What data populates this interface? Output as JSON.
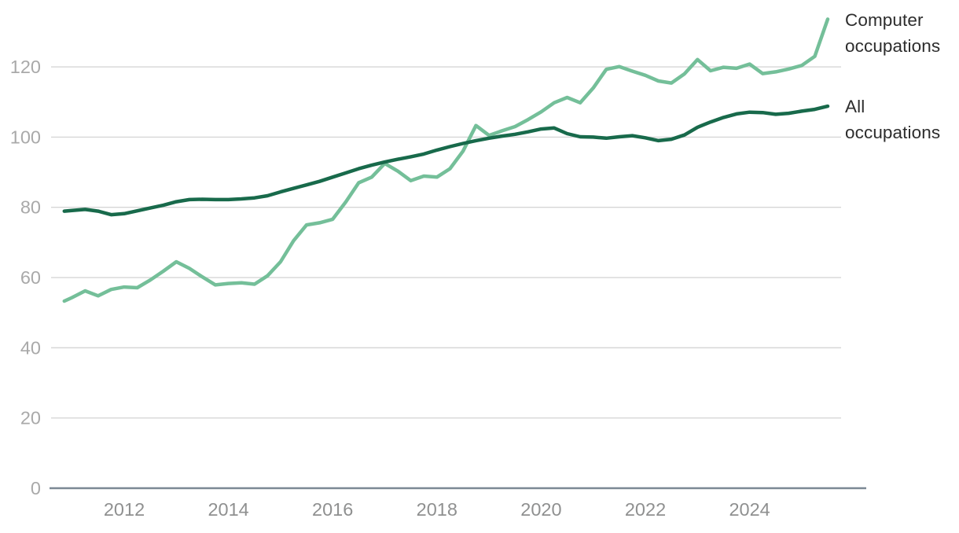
{
  "legend": {
    "series1_label": "Computer occupations",
    "series2_label": "All occupations",
    "text_color": "#2d2d2d"
  },
  "axes": {
    "x_tick_labels": [
      "2012",
      "2014",
      "2016",
      "2018",
      "2020",
      "2022",
      "2024"
    ],
    "y_tick_labels": [
      "0",
      "20",
      "40",
      "60",
      "80",
      "100",
      "120"
    ],
    "x_tick_color": "#8f9090",
    "y_tick_color": "#a9a9a9",
    "grid_color": "#d6d6d6",
    "baseline_color": "#7c8894"
  },
  "chart_data": {
    "type": "line",
    "title": "",
    "xlabel": "",
    "ylabel": "",
    "xlim": [
      2010.7,
      2025.75
    ],
    "ylim": [
      0,
      135
    ],
    "grid": true,
    "legend_position": "right-inline",
    "x_ticks": [
      2012,
      2014,
      2016,
      2018,
      2020,
      2022,
      2024
    ],
    "y_ticks": [
      0,
      20,
      40,
      60,
      80,
      100,
      120
    ],
    "x": [
      2010.85,
      2011.0,
      2011.25,
      2011.5,
      2011.75,
      2012.0,
      2012.25,
      2012.5,
      2012.75,
      2013.0,
      2013.25,
      2013.5,
      2013.75,
      2014.0,
      2014.25,
      2014.5,
      2014.75,
      2015.0,
      2015.25,
      2015.5,
      2015.75,
      2016.0,
      2016.25,
      2016.5,
      2016.75,
      2017.0,
      2017.25,
      2017.5,
      2017.75,
      2018.0,
      2018.25,
      2018.5,
      2018.75,
      2019.0,
      2019.25,
      2019.5,
      2019.75,
      2020.0,
      2020.25,
      2020.5,
      2020.75,
      2021.0,
      2021.25,
      2021.5,
      2021.75,
      2022.0,
      2022.25,
      2022.5,
      2022.75,
      2023.0,
      2023.25,
      2023.5,
      2023.75,
      2024.0,
      2024.25,
      2024.5,
      2024.75,
      2025.0,
      2025.25,
      2025.5
    ],
    "series": [
      {
        "name": "Computer occupations",
        "color": "#74bf99",
        "values": [
          53.3,
          54.3,
          56.2,
          54.8,
          56.6,
          57.3,
          57.1,
          59.3,
          61.8,
          64.5,
          62.6,
          60.2,
          57.9,
          58.3,
          58.5,
          58.1,
          60.5,
          64.5,
          70.5,
          75.0,
          75.6,
          76.6,
          81.5,
          87.0,
          88.6,
          92.5,
          90.3,
          87.6,
          88.9,
          88.6,
          91.0,
          96.0,
          103.3,
          100.5,
          101.8,
          103.0,
          105.0,
          107.2,
          109.8,
          111.3,
          109.8,
          114.0,
          119.3,
          120.1,
          118.8,
          117.6,
          116.0,
          115.4,
          118.0,
          122.1,
          118.9,
          119.9,
          119.6,
          120.8,
          118.1,
          118.6,
          119.4,
          120.4,
          123.0,
          133.6
        ]
      },
      {
        "name": "All occupations",
        "color": "#186a4b",
        "values": [
          78.9,
          79.1,
          79.4,
          78.9,
          77.9,
          78.2,
          79.0,
          79.8,
          80.6,
          81.6,
          82.2,
          82.3,
          82.2,
          82.2,
          82.4,
          82.7,
          83.3,
          84.4,
          85.4,
          86.4,
          87.4,
          88.6,
          89.8,
          91.0,
          92.0,
          92.9,
          93.7,
          94.4,
          95.2,
          96.3,
          97.3,
          98.2,
          99.0,
          99.7,
          100.3,
          100.8,
          101.5,
          102.3,
          102.6,
          101.0,
          100.1,
          100.0,
          99.7,
          100.1,
          100.4,
          99.8,
          99.0,
          99.4,
          100.6,
          102.8,
          104.3,
          105.6,
          106.6,
          107.1,
          107.0,
          106.5,
          106.8,
          107.4,
          107.9,
          108.8
        ]
      }
    ]
  }
}
